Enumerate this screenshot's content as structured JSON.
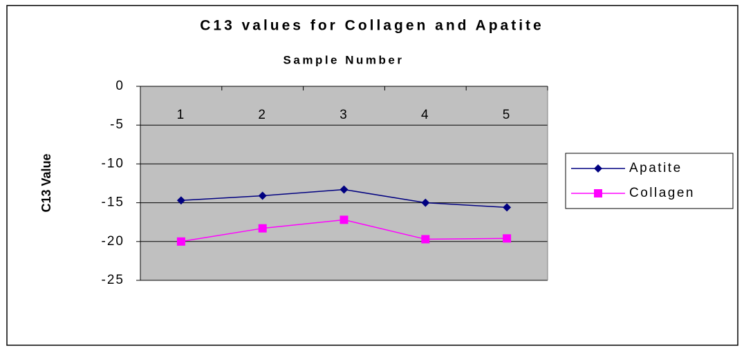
{
  "chart_data": {
    "type": "line",
    "title": "C13 values for Collagen and Apatite",
    "x_label": "Sample Number",
    "y_label": "C13 Value",
    "categories": [
      "1",
      "2",
      "3",
      "4",
      "5"
    ],
    "series": [
      {
        "name": "Apatite",
        "color": "#000080",
        "marker": "diamond",
        "values": [
          -14.7,
          -14.1,
          -13.3,
          -15.0,
          -15.6
        ]
      },
      {
        "name": "Collagen",
        "color": "#ff00ff",
        "marker": "square",
        "values": [
          -20.0,
          -18.3,
          -17.2,
          -19.7,
          -19.6
        ]
      }
    ],
    "ylim": [
      -25,
      0
    ],
    "yticks": [
      0,
      -5,
      -10,
      -15,
      -20,
      -25
    ],
    "grid": true,
    "legend": "right"
  }
}
